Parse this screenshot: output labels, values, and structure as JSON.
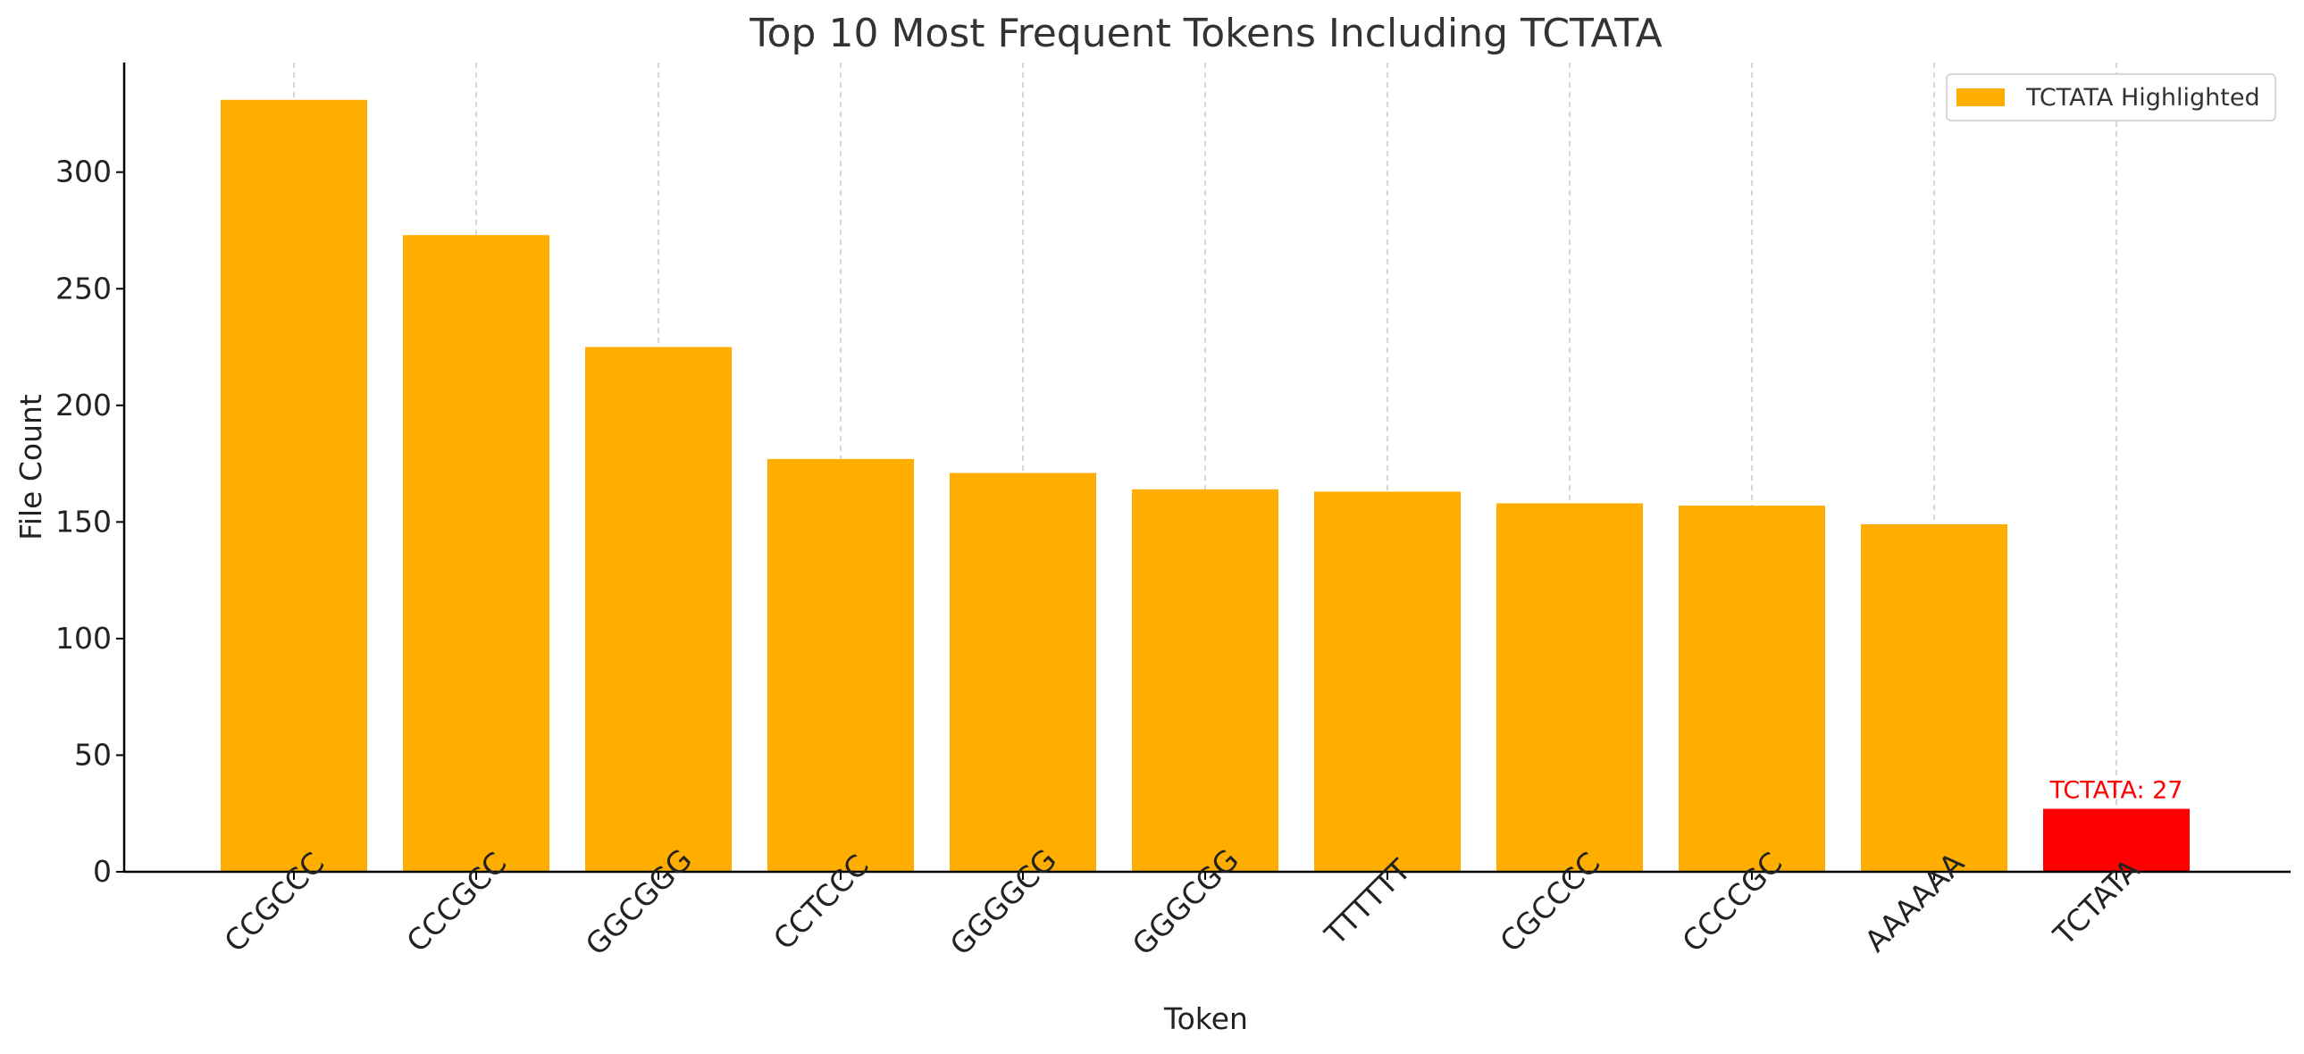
{
  "chart_data": {
    "type": "bar",
    "title": "Top 10 Most Frequent Tokens Including TCTATA",
    "xlabel": "Token",
    "ylabel": "File Count",
    "categories": [
      "CCGCCC",
      "CCCGCC",
      "GGCGGG",
      "CCTCCC",
      "GGGGCG",
      "GGGCGG",
      "TTTTTT",
      "CGCCCC",
      "CCCCGC",
      "AAAAAA",
      "TCTATA"
    ],
    "values": [
      331,
      273,
      225,
      177,
      171,
      164,
      163,
      158,
      157,
      149,
      27
    ],
    "ylim": [
      0,
      347
    ],
    "yticks": [
      0,
      50,
      100,
      150,
      200,
      250,
      300
    ],
    "grid": "vertical dashed",
    "legend": {
      "label": "TCTATA Highlighted",
      "placement": "top-right"
    },
    "highlight": {
      "category": "TCTATA",
      "label": "TCTATA: 27"
    },
    "colors": {
      "bar": "#FFAE00",
      "highlight": "#FF0000",
      "axis": "#000000",
      "grid": "#C8C8C8"
    }
  }
}
